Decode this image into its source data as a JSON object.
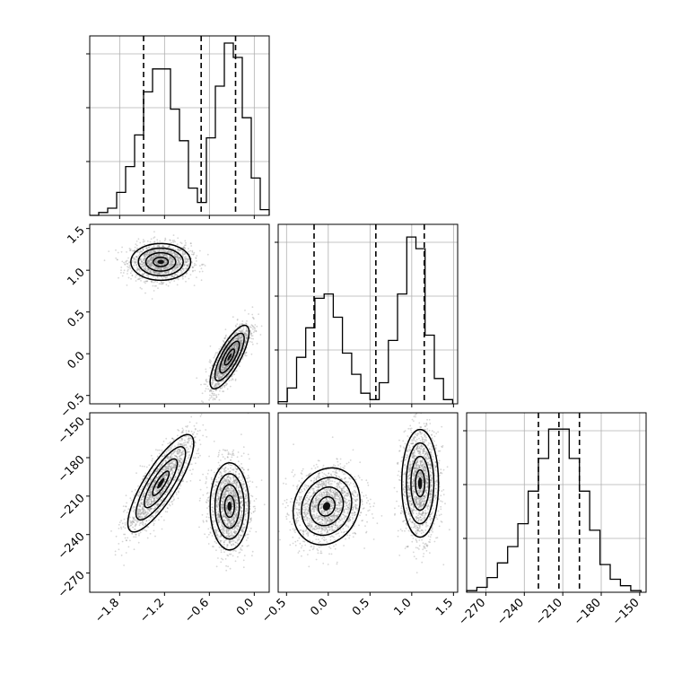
{
  "chart_data": {
    "type": "corner",
    "title": "",
    "variables": [
      {
        "label": "",
        "range": [
          -2.2,
          0.2
        ],
        "ticks": [
          -1.8,
          -1.2,
          -0.6,
          0.0
        ],
        "tick_labels": [
          "−1.8",
          "−1.2",
          "−0.6",
          "0.0"
        ]
      },
      {
        "label": "",
        "range": [
          -0.6,
          1.55
        ],
        "ticks": [
          -0.5,
          0.0,
          0.5,
          1.0,
          1.5
        ],
        "tick_labels": [
          "−0.5",
          "0.0",
          "0.5",
          "1.0",
          "1.5"
        ]
      },
      {
        "label": "",
        "range": [
          -285,
          -145
        ],
        "ticks": [
          -270,
          -240,
          -210,
          -180,
          -150
        ],
        "tick_labels": [
          "−270",
          "−240",
          "−210",
          "−180",
          "−150"
        ]
      }
    ],
    "histograms": [
      {
        "var": 0,
        "bin_edges": [
          -2.2,
          -2.08,
          -1.96,
          -1.84,
          -1.72,
          -1.6,
          -1.48,
          -1.36,
          -1.24,
          -1.12,
          -1.0,
          -0.88,
          -0.76,
          -0.64,
          -0.52,
          -0.4,
          -0.28,
          -0.16,
          -0.04,
          0.08,
          0.2
        ],
        "counts": [
          0,
          2,
          5,
          16,
          34,
          56,
          86,
          102,
          102,
          74,
          52,
          19,
          9,
          54,
          90,
          120,
          110,
          68,
          26,
          4
        ],
        "ylim": [
          0,
          125
        ],
        "quantiles": [
          -1.48,
          -0.71,
          -0.25
        ]
      },
      {
        "var": 1,
        "bin_edges": [
          -0.6,
          -0.49,
          -0.38,
          -0.27,
          -0.16,
          -0.05,
          0.06,
          0.17,
          0.28,
          0.39,
          0.5,
          0.61,
          0.72,
          0.83,
          0.94,
          1.05,
          1.16,
          1.27,
          1.38,
          1.49
        ],
        "counts": [
          2,
          15,
          44,
          72,
          100,
          104,
          82,
          48,
          28,
          10,
          4,
          20,
          60,
          104,
          158,
          147,
          65,
          24,
          4
        ],
        "ylim": [
          0,
          170
        ],
        "quantiles": [
          -0.17,
          0.57,
          1.15
        ]
      },
      {
        "var": 2,
        "bin_edges": [
          -285,
          -277,
          -269,
          -261,
          -253,
          -245,
          -237,
          -229,
          -221,
          -213,
          -205,
          -197,
          -189,
          -181,
          -173,
          -165,
          -157,
          -149
        ],
        "counts": [
          1,
          3,
          9,
          18,
          28,
          42,
          62,
          82,
          100,
          100,
          82,
          62,
          38,
          17,
          8,
          4,
          1
        ],
        "ylim": [
          0,
          110
        ],
        "quantiles": [
          -229,
          -213,
          -197
        ]
      }
    ],
    "pairs": [
      {
        "x_var": 0,
        "y_var": 1,
        "clusters": [
          {
            "cx": -1.25,
            "cy": 1.1,
            "sx": 0.2,
            "sy": 0.11,
            "rho": 0.0,
            "n": 1600
          },
          {
            "cx": -0.33,
            "cy": -0.04,
            "sx": 0.13,
            "sy": 0.19,
            "rho": 0.78,
            "n": 1600
          }
        ]
      },
      {
        "x_var": 0,
        "y_var": 2,
        "clusters": [
          {
            "cx": -1.25,
            "cy": -200,
            "sx": 0.22,
            "sy": 19,
            "rho": 0.82,
            "n": 1600
          },
          {
            "cx": -0.33,
            "cy": -218,
            "sx": 0.13,
            "sy": 17,
            "rho": 0.0,
            "n": 1600
          }
        ]
      },
      {
        "x_var": 1,
        "y_var": 2,
        "clusters": [
          {
            "cx": -0.02,
            "cy": -218,
            "sx": 0.2,
            "sy": 15,
            "rho": 0.15,
            "n": 1600
          },
          {
            "cx": 1.1,
            "cy": -200,
            "sx": 0.11,
            "sy": 21,
            "rho": 0.0,
            "n": 1600
          }
        ]
      }
    ],
    "contour_levels_sigma": [
      0.5,
      1.0,
      1.5,
      2.0
    ],
    "colors": {
      "points": "#8a8a8a",
      "line": "#000000",
      "grid": "#b0b0b0"
    }
  }
}
